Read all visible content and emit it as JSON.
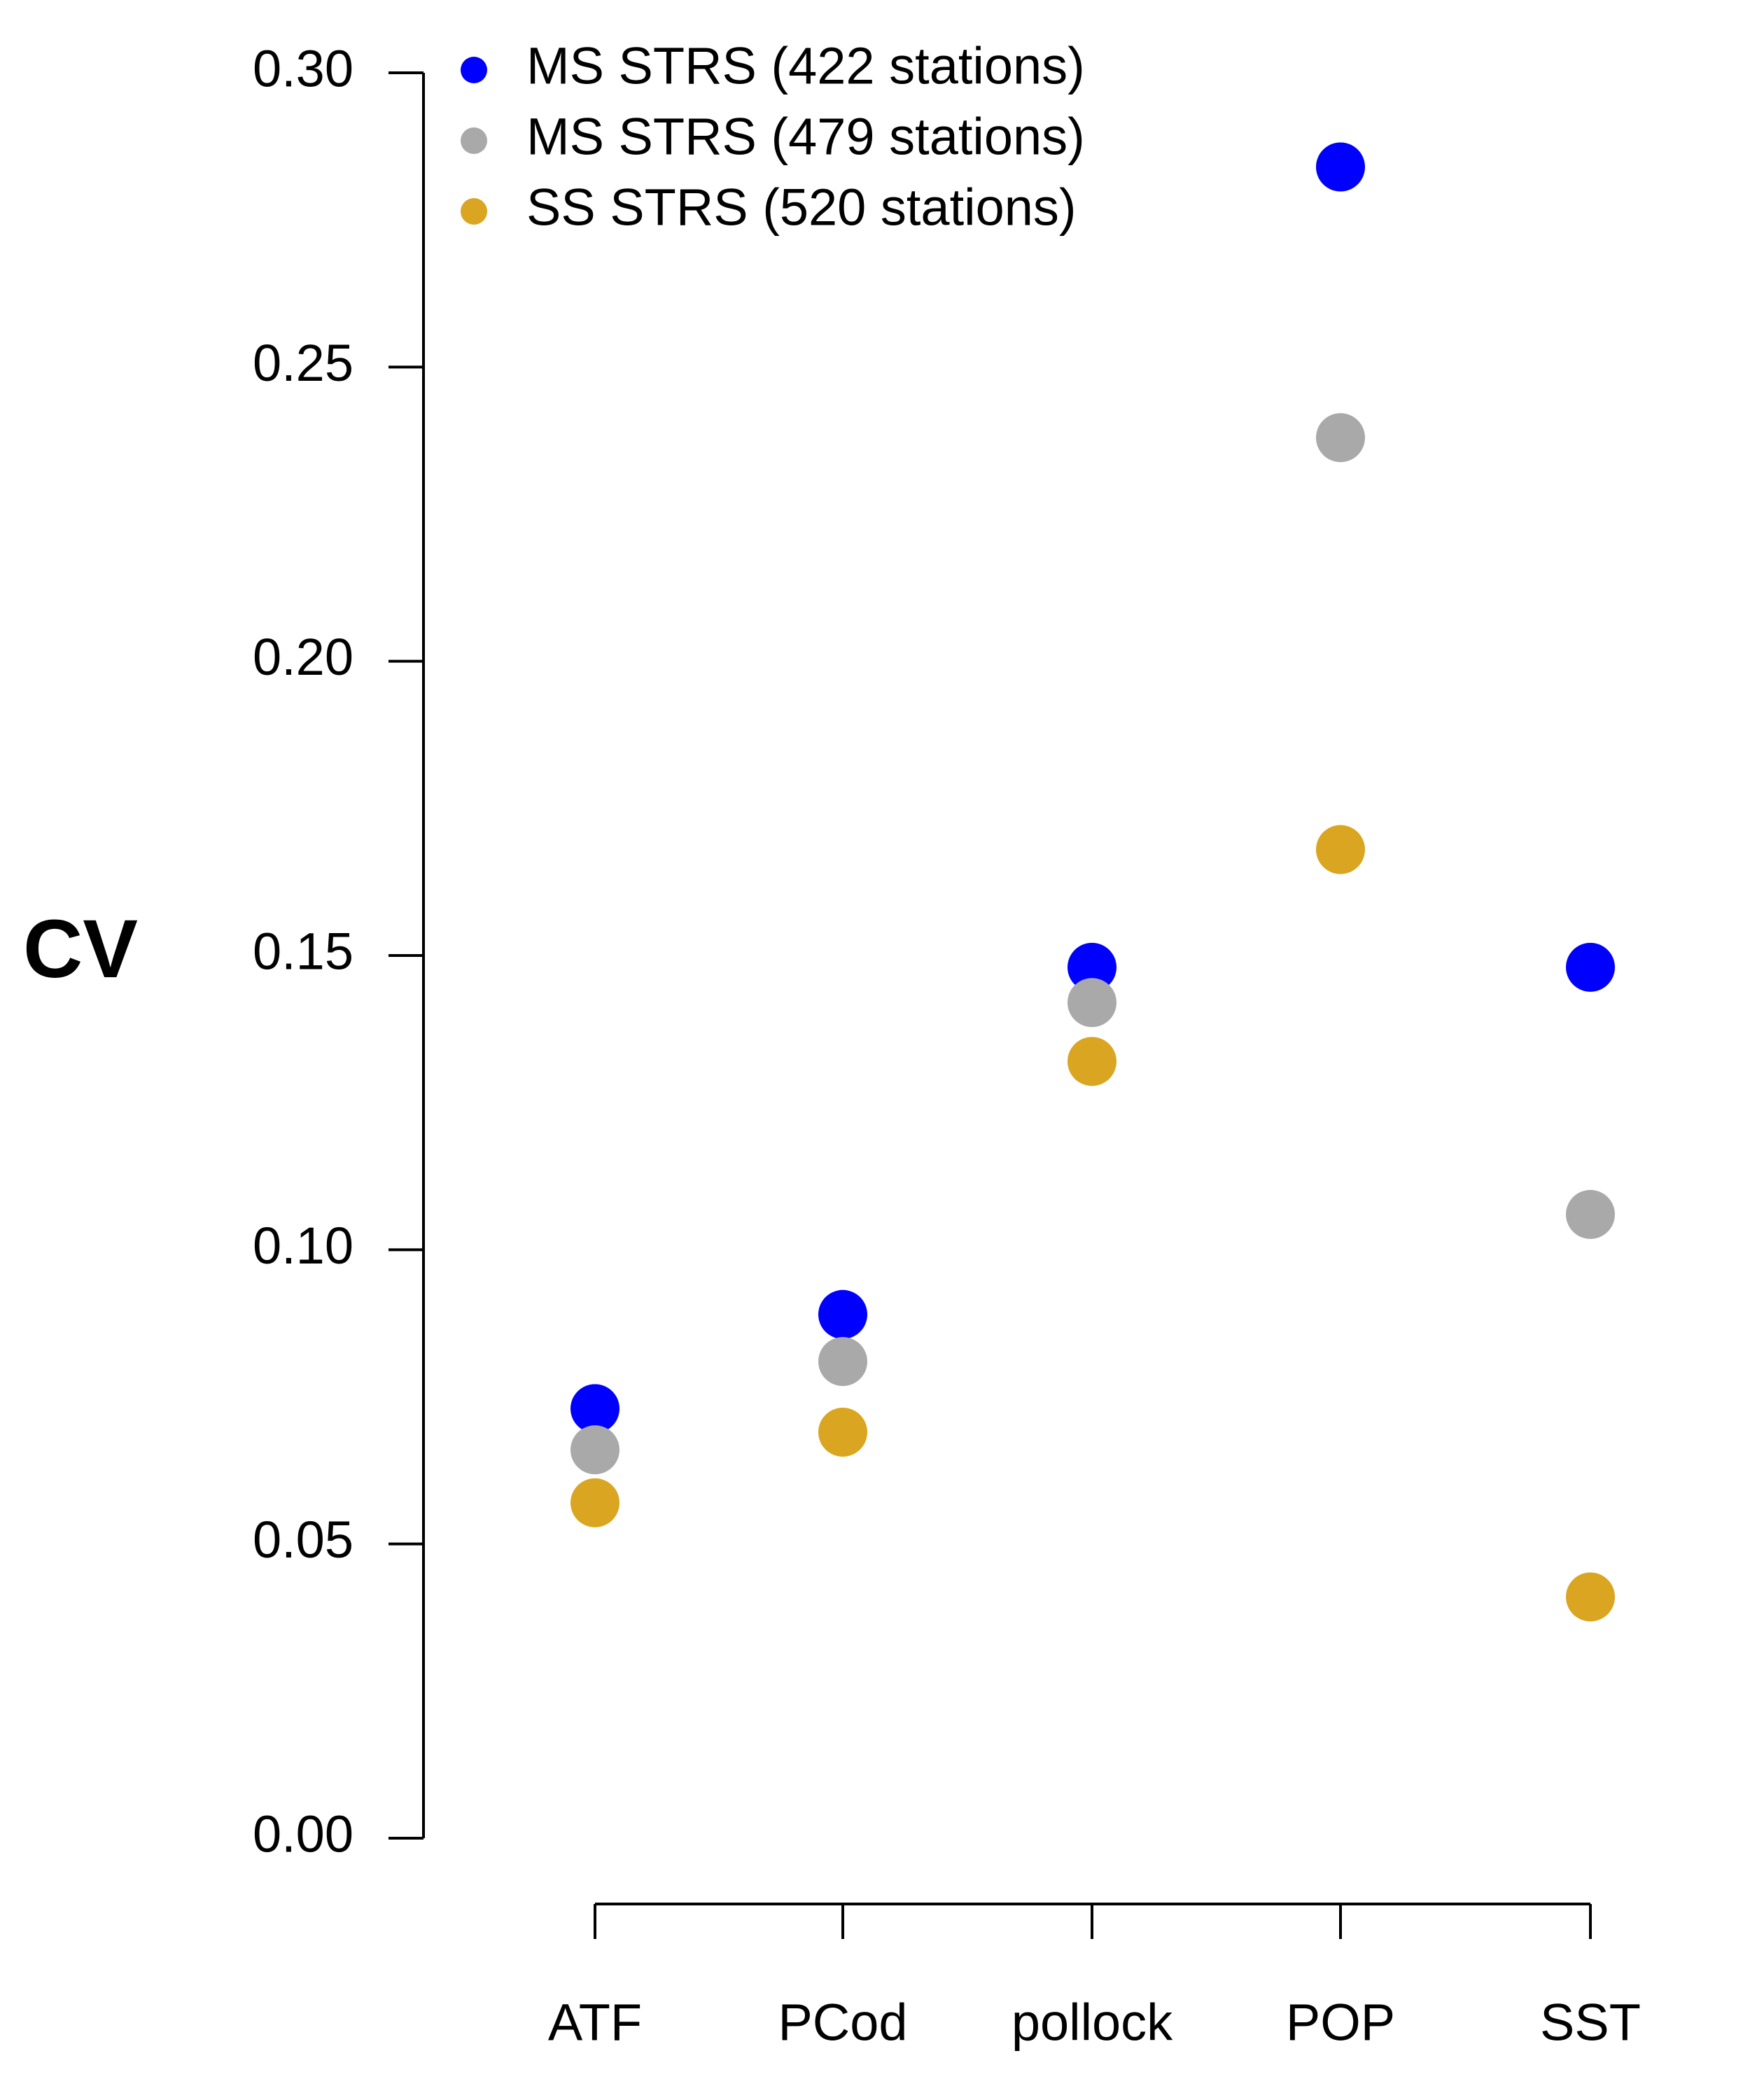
{
  "chart_data": {
    "type": "scatter",
    "title": "",
    "xlabel": "",
    "ylabel": "CV",
    "categories": [
      "ATF",
      "PCod",
      "pollock",
      "POP",
      "SST"
    ],
    "ylim": [
      0,
      0.3
    ],
    "yticks": [
      "0.00",
      "0.05",
      "0.10",
      "0.15",
      "0.20",
      "0.25",
      "0.30"
    ],
    "grid": false,
    "legend_position": "top-left",
    "series": [
      {
        "name": "MS STRS (422 stations)",
        "color": "#0000ff",
        "values": [
          0.073,
          0.089,
          0.148,
          0.284,
          0.148
        ]
      },
      {
        "name": "MS STRS (479 stations)",
        "color": "#a9a9a9",
        "values": [
          0.066,
          0.081,
          0.142,
          0.238,
          0.106
        ]
      },
      {
        "name": "SS STRS (520 stations)",
        "color": "#daa520",
        "values": [
          0.057,
          0.069,
          0.132,
          0.168,
          0.041
        ]
      }
    ]
  }
}
